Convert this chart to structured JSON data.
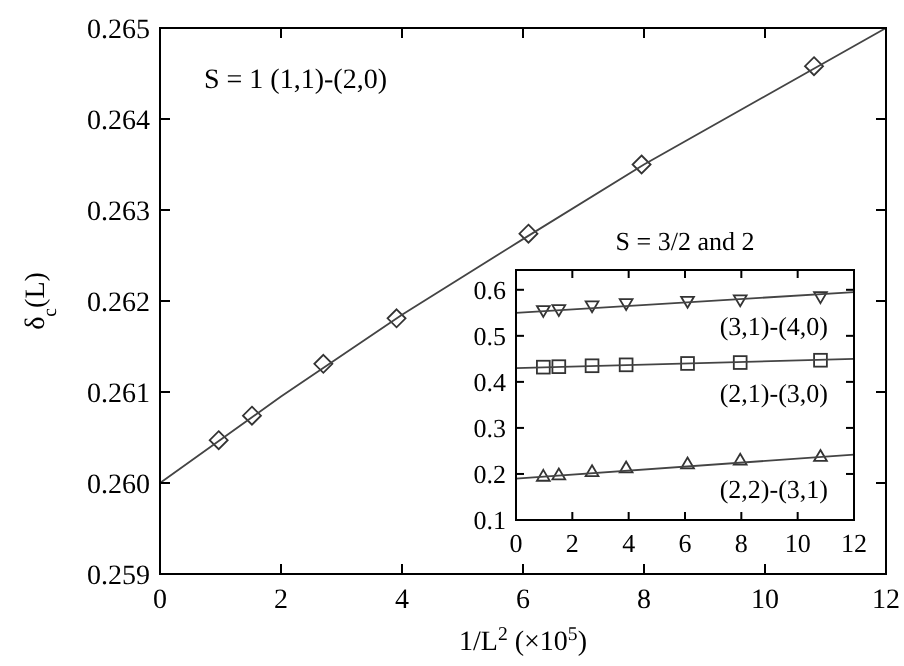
{
  "chart_data": [
    {
      "type": "scatter",
      "ylabel": "δ$_{c}$(L)",
      "xlabel": "1/L$^{2}$ (×10$^{5}$)",
      "annotations": [
        "S = 1  (1,1)-(2,0)"
      ],
      "x": [
        0.97,
        1.52,
        2.7,
        3.91,
        6.09,
        7.96,
        10.81
      ],
      "xlim": [
        0,
        12
      ],
      "xticks": [
        0,
        2,
        4,
        6,
        8,
        10,
        12
      ],
      "ylim": [
        0.259,
        0.265
      ],
      "yticks": [
        {
          "value": 0.259,
          "label": "0.259"
        },
        {
          "value": 0.26,
          "label": "0.260"
        },
        {
          "value": 0.261,
          "label": "0.261"
        },
        {
          "value": 0.262,
          "label": "0.262"
        },
        {
          "value": 0.263,
          "label": "0.263"
        },
        {
          "value": 0.264,
          "label": "0.264"
        },
        {
          "value": 0.265,
          "label": "0.265"
        }
      ],
      "series": [
        {
          "marker": "diamond",
          "color": "#333333",
          "values": [
            0.26047,
            0.26074,
            0.26131,
            0.26181,
            0.26274,
            0.2635,
            0.26458
          ]
        },
        {
          "type": "line",
          "marker": "none",
          "line_style": "solid",
          "color": "#444444",
          "x": [
            0,
            2,
            4,
            6,
            8,
            10,
            12
          ],
          "values": [
            0.26,
            0.26095,
            0.26185,
            0.26268,
            0.2635,
            0.26425,
            0.265
          ]
        }
      ]
    },
    {
      "type": "scatter",
      "title": "S = 3/2 and 2",
      "x": [
        0.97,
        1.52,
        2.7,
        3.91,
        6.09,
        7.96,
        10.81
      ],
      "xlim": [
        0,
        12
      ],
      "xticks": [
        0,
        2,
        4,
        6,
        8,
        10,
        12
      ],
      "ylim": [
        0.1,
        0.643
      ],
      "yticks": [
        0.1,
        0.2,
        0.3,
        0.4,
        0.5,
        0.6
      ],
      "series": [
        {
          "marker": "triangle-down",
          "color": "#333333",
          "values": [
            0.555,
            0.557,
            0.565,
            0.57,
            0.575,
            0.578,
            0.585
          ]
        },
        {
          "marker": "square",
          "color": "#333333",
          "values": [
            0.432,
            0.433,
            0.435,
            0.437,
            0.44,
            0.442,
            0.447
          ]
        },
        {
          "marker": "triangle",
          "color": "#333333",
          "values": [
            0.195,
            0.198,
            0.205,
            0.213,
            0.222,
            0.23,
            0.238
          ]
        },
        {
          "type": "line",
          "name": "(3,1)-(4,0)",
          "marker": "none",
          "line_style": "solid",
          "color": "#444444",
          "x": [
            0,
            12
          ],
          "values": [
            0.55,
            0.595
          ]
        },
        {
          "type": "line",
          "name": "(2,1)-(3,0)",
          "marker": "none",
          "line_style": "solid",
          "color": "#444444",
          "x": [
            0,
            12
          ],
          "values": [
            0.43,
            0.45
          ]
        },
        {
          "type": "line",
          "name": "(2,2)-(3,1)",
          "marker": "none",
          "line_style": "solid",
          "color": "#444444",
          "x": [
            0,
            12
          ],
          "values": [
            0.19,
            0.242
          ]
        }
      ]
    }
  ]
}
